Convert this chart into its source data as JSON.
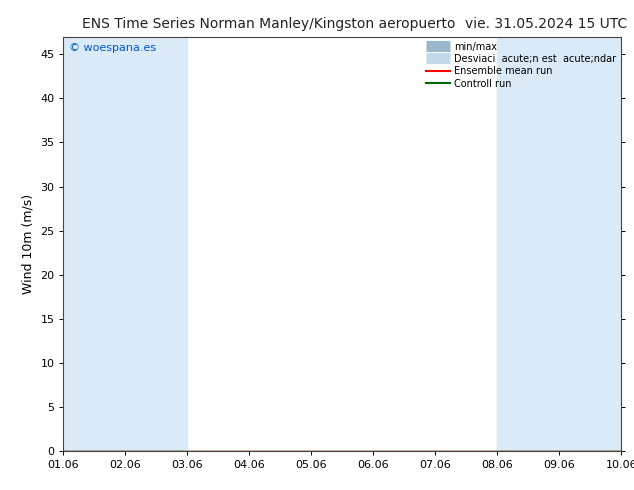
{
  "title_left": "ENS Time Series Norman Manley/Kingston aeropuerto",
  "title_right": "vie. 31.05.2024 15 UTC",
  "ylabel": "Wind 10m (m/s)",
  "watermark": "© woespana.es",
  "xlim": [
    0,
    9
  ],
  "ylim": [
    0,
    47
  ],
  "yticks": [
    0,
    5,
    10,
    15,
    20,
    25,
    30,
    35,
    40,
    45
  ],
  "xtick_labels": [
    "01.06",
    "02.06",
    "03.06",
    "04.06",
    "05.06",
    "06.06",
    "07.06",
    "08.06",
    "09.06",
    "10.06"
  ],
  "shaded_bands": [
    [
      0,
      1
    ],
    [
      1,
      2
    ],
    [
      7,
      8
    ],
    [
      8,
      9
    ]
  ],
  "shade_color": "#daeaf7",
  "bg_color": "#ffffff",
  "legend_minmax_color": "#9ab8cc",
  "legend_std_color": "#c5d8e8",
  "ensemble_color": "#ff0000",
  "control_color": "#006600",
  "title_fontsize": 10,
  "axis_fontsize": 9,
  "tick_fontsize": 8,
  "watermark_color": "#0055cc"
}
